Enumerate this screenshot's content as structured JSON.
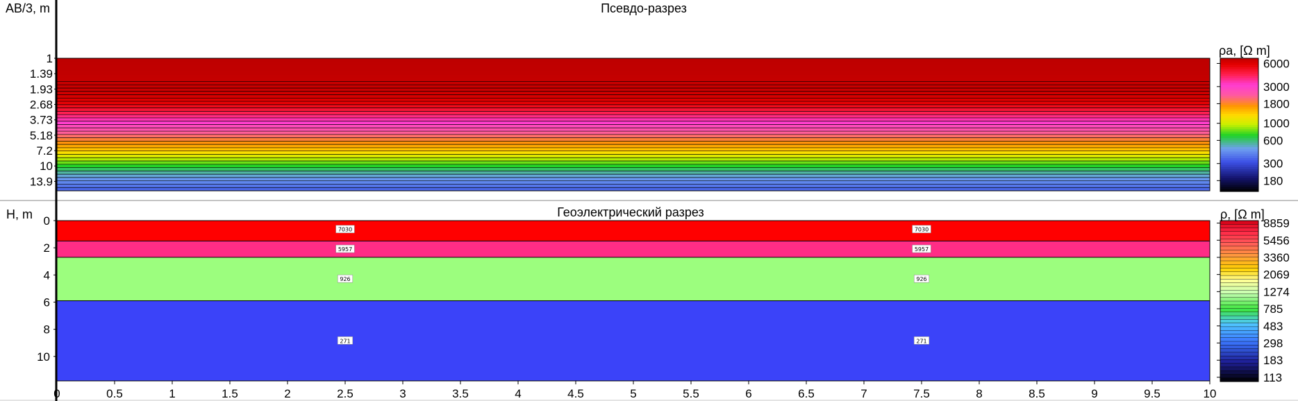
{
  "chart_data": [
    {
      "type": "heatmap",
      "title": "Псевдо-разрез",
      "ylabel": "AB/3, m",
      "y_scale": "log",
      "y_ticks": [
        "1",
        "1.39",
        "1.93",
        "2.68",
        "3.73",
        "5.18",
        "7.2",
        "10",
        "13.9"
      ],
      "ylim": [
        1,
        17
      ],
      "x_ticks": [
        "0",
        "0.5",
        "1",
        "1.5",
        "2",
        "2.5",
        "3",
        "3.5",
        "4",
        "4.5",
        "5",
        "5.5",
        "6",
        "6.5",
        "7",
        "7.5",
        "8",
        "8.5",
        "9",
        "9.5",
        "10"
      ],
      "xlim": [
        0,
        10
      ],
      "colorbar_title": "ρa, [Ω m]",
      "colorbar_ticks": [
        "6000",
        "3000",
        "1800",
        "1000",
        "600",
        "300",
        "180"
      ],
      "colorbar_range": [
        130,
        7000
      ],
      "rows": [
        {
          "ab3": 1.0,
          "rho": 7000
        },
        {
          "ab3": 1.39,
          "rho": 6900
        },
        {
          "ab3": 1.93,
          "rho": 6600
        },
        {
          "ab3": 2.3,
          "rho": 6200
        },
        {
          "ab3": 2.68,
          "rho": 5500
        },
        {
          "ab3": 3.1,
          "rho": 4500
        },
        {
          "ab3": 3.73,
          "rho": 3400
        },
        {
          "ab3": 4.3,
          "rho": 2700
        },
        {
          "ab3": 5.18,
          "rho": 2100
        },
        {
          "ab3": 6.1,
          "rho": 1700
        },
        {
          "ab3": 7.2,
          "rho": 1350
        },
        {
          "ab3": 8.5,
          "rho": 950
        },
        {
          "ab3": 10.0,
          "rho": 700
        },
        {
          "ab3": 11.8,
          "rho": 520
        },
        {
          "ab3": 13.9,
          "rho": 420
        }
      ]
    },
    {
      "type": "heatmap",
      "title": "Геоэлектрический разрез",
      "ylabel": "H, m",
      "y_ticks": [
        "0",
        "2",
        "4",
        "6",
        "8",
        "10"
      ],
      "ylim": [
        0,
        11.8
      ],
      "x_ticks": [
        "0",
        "0.5",
        "1",
        "1.5",
        "2",
        "2.5",
        "3",
        "3.5",
        "4",
        "4.5",
        "5",
        "5.5",
        "6",
        "6.5",
        "7",
        "7.5",
        "8",
        "8.5",
        "9",
        "9.5",
        "10"
      ],
      "xlim": [
        0,
        10
      ],
      "colorbar_title": "ρ, [Ω m]",
      "colorbar_ticks": [
        "8859",
        "5456",
        "3360",
        "2069",
        "1274",
        "785",
        "483",
        "298",
        "183",
        "113"
      ],
      "colorbar_range": [
        100,
        9500
      ],
      "layers": [
        {
          "top": 0,
          "bottom": 1.5,
          "rho": 7030,
          "color": "#ff0000"
        },
        {
          "top": 1.5,
          "bottom": 2.7,
          "rho": 5957,
          "color": "#ff2d86"
        },
        {
          "top": 2.7,
          "bottom": 5.9,
          "rho": 926,
          "color": "#9cfe7e"
        },
        {
          "top": 5.9,
          "bottom": 11.8,
          "rho": 271,
          "color": "#3b43f9"
        }
      ],
      "label_x": [
        2.5,
        7.5
      ]
    }
  ]
}
